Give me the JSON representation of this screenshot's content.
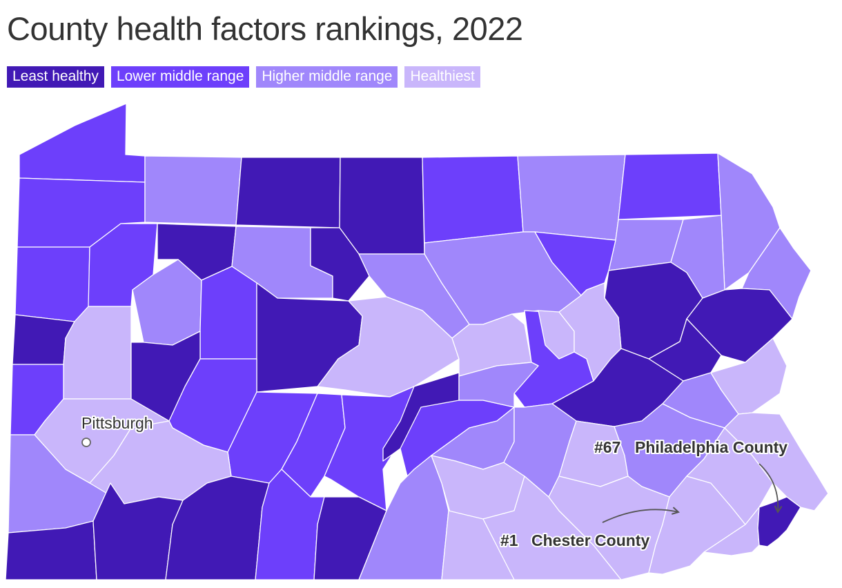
{
  "title": "County health factors rankings, 2022",
  "colors": {
    "least": "#4119b5",
    "lower": "#6d3ffb",
    "higher": "#a087fb",
    "healthiest": "#c9b6fb",
    "stroke": "#ffffff"
  },
  "legend": [
    {
      "label": "Least healthy",
      "key": "least"
    },
    {
      "label": "Lower middle range",
      "key": "lower"
    },
    {
      "label": "Higher middle range",
      "key": "higher"
    },
    {
      "label": "Healthiest",
      "key": "healthiest"
    }
  ],
  "annotations": {
    "city": "Pittsburgh",
    "rank_top": "#1",
    "rank_top_county": "Chester County",
    "rank_bottom": "#67",
    "rank_bottom_county": "Philadelphia County"
  }
}
